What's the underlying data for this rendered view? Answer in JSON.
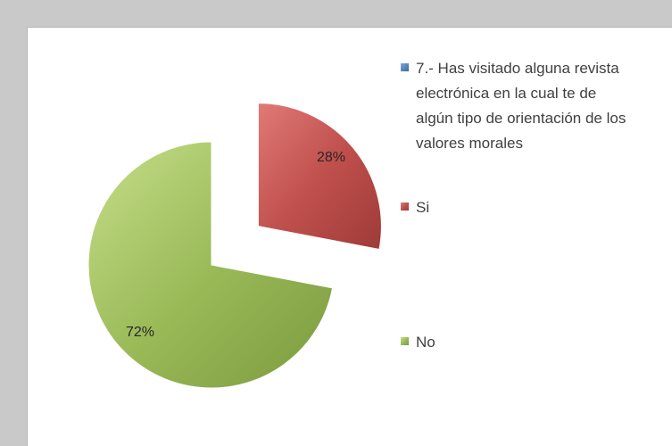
{
  "chart_data": {
    "type": "pie",
    "title": "",
    "legend_position": "right",
    "series_legend": "7.- Has visitado alguna revista electrónica en la cual te de algún tipo de orientación de los valores morales",
    "categories": [
      "Si",
      "No"
    ],
    "values": [
      28,
      72
    ],
    "labels": [
      "28%",
      "72%"
    ],
    "colors": {
      "series": "#4a7ebb",
      "Si": "#c0504d",
      "No": "#9bbb59"
    }
  }
}
